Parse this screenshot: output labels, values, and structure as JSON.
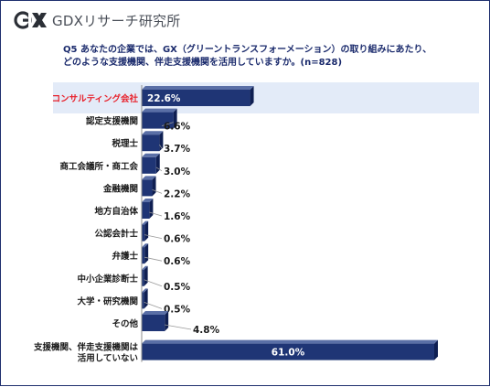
{
  "header": {
    "logo_text": "GDXリサーチ研究所",
    "logo_mark_icon": "gdx-logo-icon"
  },
  "question": {
    "line1": "Q5 あなたの企業では、GX（グリーントランスフォーメーション）の取り組みにあたり、",
    "line2": "どのような支援機関、伴走支援機関を活用していますか。(n=828)"
  },
  "colors": {
    "bar": "#1f3575",
    "bar_side": "#0f1f52",
    "bar_top": "#5a6fa6",
    "highlight_band": "#e3ebf8",
    "highlight_label": "#e8202a",
    "label": "#1a1a1a",
    "axis": "#8e8e8e",
    "leader": "#9a9a9a"
  },
  "chart_data": {
    "type": "bar",
    "orientation": "horizontal",
    "unit": "%",
    "xlim": [
      0,
      61
    ],
    "highlight_category": "コンサルティング会社",
    "categories": [
      "コンサルティング会社",
      "認定支援機関",
      "税理士",
      "商工会議所・商工会",
      "金融機関",
      "地方自治体",
      "公認会計士",
      "弁護士",
      "中小企業診断士",
      "大学・研究機関",
      "その他",
      "支援機関、伴走支援機関は\n活用していない"
    ],
    "values": [
      22.6,
      6.6,
      3.7,
      3.0,
      2.2,
      1.6,
      0.6,
      0.6,
      0.5,
      0.5,
      4.8,
      61.0
    ],
    "value_labels": [
      "22.6%",
      "6.6%",
      "3.7%",
      "3.0%",
      "2.2%",
      "1.6%",
      "0.6%",
      "0.6%",
      "0.5%",
      "0.5%",
      "4.8%",
      "61.0%"
    ],
    "grid": false,
    "legend": "none"
  }
}
